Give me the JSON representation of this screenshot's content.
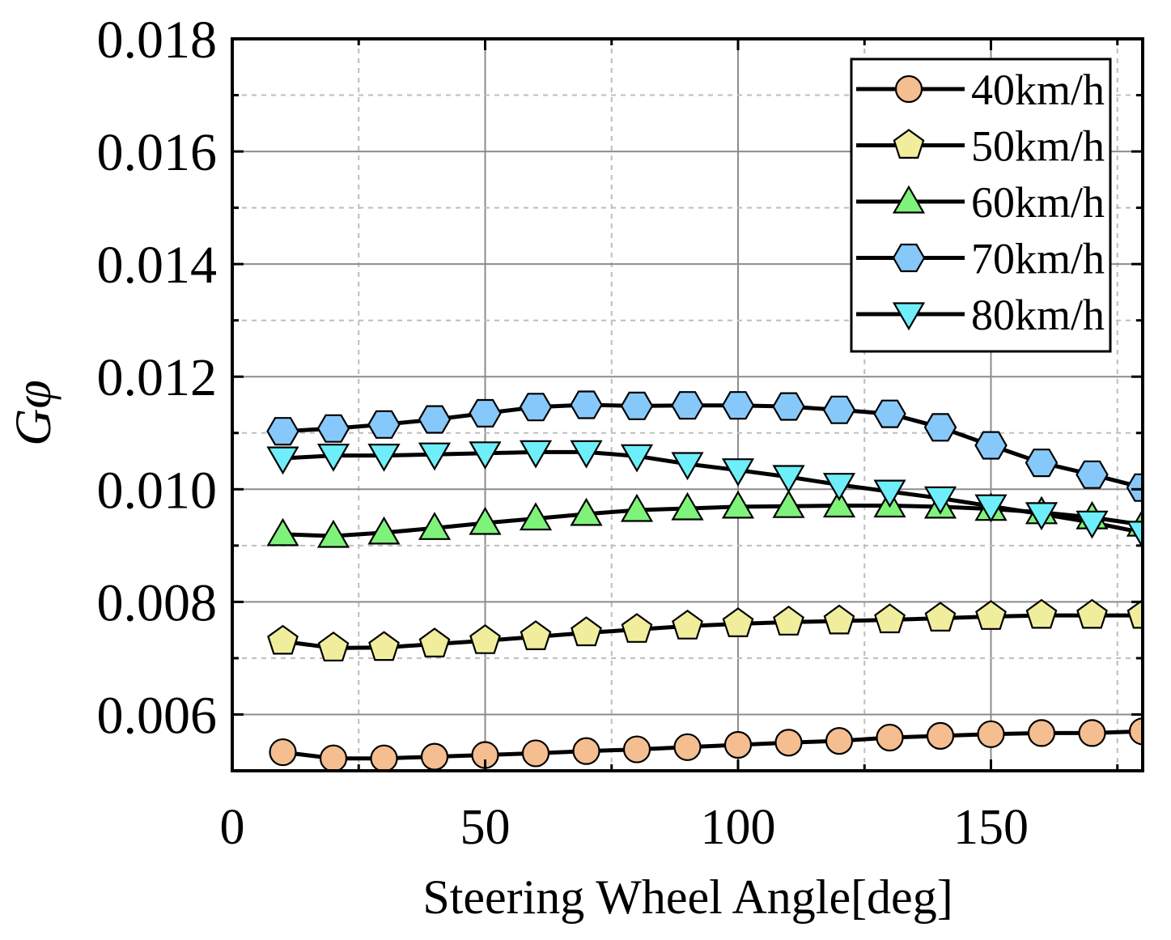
{
  "chart_data": {
    "type": "line",
    "title": "",
    "xlabel": "Steering Wheel Angle[deg]",
    "ylabel": "Gφ",
    "xlim": [
      0,
      180
    ],
    "ylim": [
      0.005,
      0.018
    ],
    "x_ticks": [
      0,
      50,
      100,
      150
    ],
    "x_tick_labels": [
      "0",
      "50",
      "100",
      "150"
    ],
    "y_ticks": [
      0.006,
      0.008,
      0.01,
      0.012,
      0.014,
      0.016,
      0.018
    ],
    "y_tick_labels": [
      "0.006",
      "0.008",
      "0.010",
      "0.012",
      "0.014",
      "0.016",
      "0.018"
    ],
    "grid": true,
    "legend_position": "top-right",
    "x": [
      10,
      20,
      30,
      40,
      50,
      60,
      70,
      80,
      90,
      100,
      110,
      120,
      130,
      140,
      150,
      160,
      170,
      180
    ],
    "series": [
      {
        "name": "40km/h",
        "marker": "circle",
        "color": "#F5BE90",
        "values": [
          0.00533,
          0.00522,
          0.00522,
          0.00525,
          0.00528,
          0.00531,
          0.00535,
          0.00538,
          0.00542,
          0.00546,
          0.0055,
          0.00553,
          0.00559,
          0.00562,
          0.00565,
          0.00567,
          0.00567,
          0.0057
        ]
      },
      {
        "name": "50km/h",
        "marker": "pentagon",
        "color": "#F0EE9C",
        "values": [
          0.0073,
          0.00718,
          0.00719,
          0.00725,
          0.00731,
          0.00738,
          0.00745,
          0.00751,
          0.00757,
          0.00761,
          0.00764,
          0.00766,
          0.00768,
          0.00771,
          0.00774,
          0.00776,
          0.00776,
          0.00776
        ]
      },
      {
        "name": "60km/h",
        "marker": "triangle-up",
        "color": "#7FF27A",
        "values": [
          0.0092,
          0.00917,
          0.00923,
          0.00931,
          0.0094,
          0.00948,
          0.00956,
          0.00963,
          0.00966,
          0.00969,
          0.0097,
          0.00971,
          0.00971,
          0.00969,
          0.00965,
          0.00959,
          0.0095,
          0.00937
        ]
      },
      {
        "name": "70km/h",
        "marker": "hexagon",
        "color": "#86C8FA",
        "values": [
          0.01103,
          0.01108,
          0.01115,
          0.01124,
          0.01135,
          0.01146,
          0.0115,
          0.01148,
          0.01149,
          0.01149,
          0.01147,
          0.01141,
          0.01134,
          0.0111,
          0.01078,
          0.01047,
          0.01026,
          0.01003
        ]
      },
      {
        "name": "80km/h",
        "marker": "triangle-down",
        "color": "#6EEEF8",
        "values": [
          0.01055,
          0.0106,
          0.0106,
          0.01062,
          0.01064,
          0.01066,
          0.01066,
          0.01059,
          0.01045,
          0.01034,
          0.01022,
          0.01008,
          0.00996,
          0.00984,
          0.0097,
          0.00956,
          0.00941,
          0.00923
        ]
      }
    ]
  }
}
